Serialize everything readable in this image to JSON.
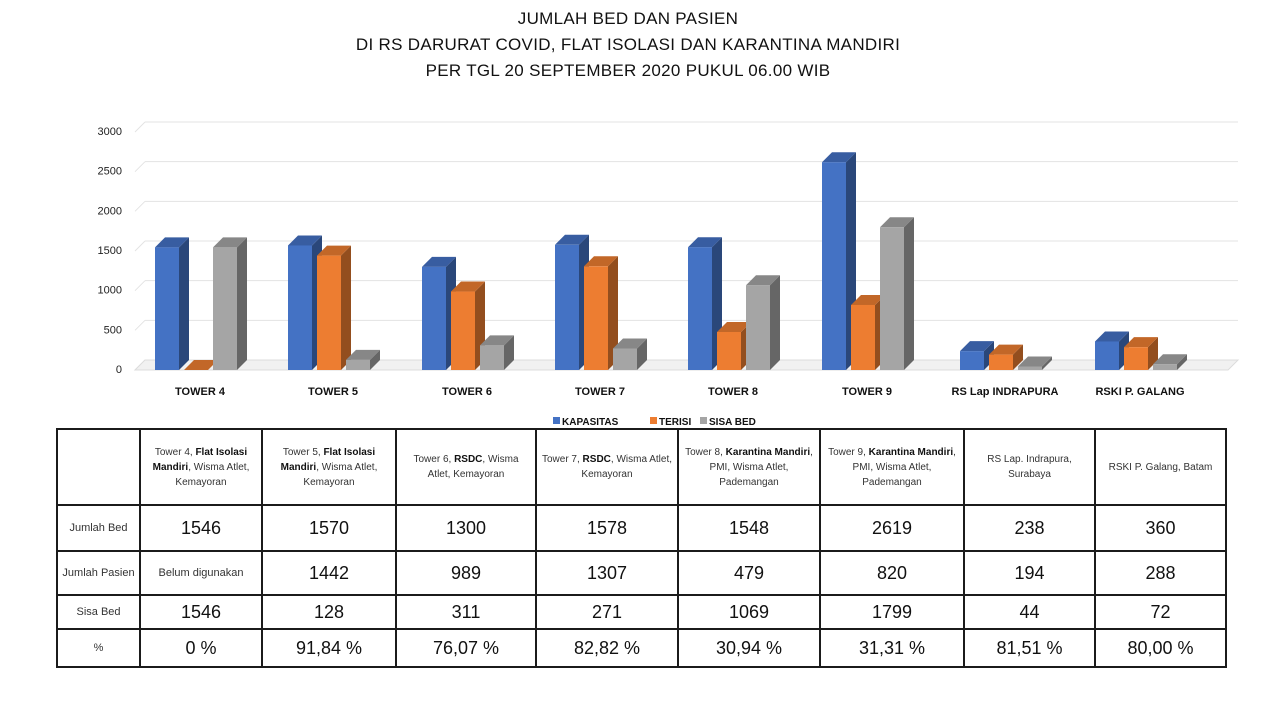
{
  "title": {
    "line1": "JUMLAH BED DAN PASIEN",
    "line2": "DI RS DARURAT COVID, FLAT ISOLASI  DAN KARANTINA MANDIRI",
    "line3": "PER TGL 20 SEPTEMBER 2020 PUKUL 06.00 WIB"
  },
  "chart_data": {
    "type": "bar",
    "title": "JUMLAH BED DAN PASIEN DI RS DARURAT COVID, FLAT ISOLASI  DAN KARANTINA MANDIRI PER TGL 20 SEPTEMBER 2020 PUKUL 06.00 WIB",
    "categories": [
      "TOWER 4",
      "TOWER 5",
      "TOWER 6",
      "TOWER 7",
      "TOWER 8",
      "TOWER 9",
      "RS Lap INDRAPURA",
      "RSKI P. GALANG"
    ],
    "series": [
      {
        "name": "KAPASITAS",
        "color": "#4472C4",
        "values": [
          1546,
          1570,
          1300,
          1578,
          1548,
          2619,
          238,
          360
        ]
      },
      {
        "name": "TERISI",
        "color": "#ED7D31",
        "values": [
          0,
          1442,
          989,
          1307,
          479,
          820,
          194,
          288
        ]
      },
      {
        "name": "SISA BED",
        "color": "#A5A5A5",
        "values": [
          1546,
          128,
          311,
          271,
          1069,
          1799,
          44,
          72
        ]
      }
    ],
    "yticks": [
      "0",
      "500",
      "1000",
      "1500",
      "2000",
      "2500",
      "3000"
    ],
    "ylim": [
      0,
      3000
    ],
    "grid": true,
    "legend_position": "bottom"
  },
  "table": {
    "headers": [
      {
        "pre": "Tower 4, ",
        "bold": "Flat Isolasi Mandiri",
        "post": ", Wisma Atlet, Kemayoran"
      },
      {
        "pre": "Tower 5, ",
        "bold": "Flat Isolasi Mandiri",
        "post": ", Wisma Atlet, Kemayoran"
      },
      {
        "pre": "Tower 6, ",
        "bold": "RSDC",
        "post": ", Wisma Atlet, Kemayoran"
      },
      {
        "pre": "Tower 7, ",
        "bold": "RSDC",
        "post": ", Wisma Atlet, Kemayoran"
      },
      {
        "pre": "Tower 8, ",
        "bold": "Karantina Mandiri",
        "post": ", PMI, Wisma Atlet, Pademangan"
      },
      {
        "pre": "Tower 9, ",
        "bold": "Karantina Mandiri",
        "post": ", PMI, Wisma Atlet, Pademangan"
      },
      {
        "pre": "RS Lap. Indrapura, Surabaya",
        "bold": "",
        "post": ""
      },
      {
        "pre": "RSKI P. Galang, Batam",
        "bold": "",
        "post": ""
      }
    ],
    "rows": [
      {
        "label": "Jumlah Bed",
        "values": [
          "1546",
          "1570",
          "1300",
          "1578",
          "1548",
          "2619",
          "238",
          "360"
        ]
      },
      {
        "label": "Jumlah Pasien",
        "values": [
          "Belum digunakan",
          "1442",
          "989",
          "1307",
          "479",
          "820",
          "194",
          "288"
        ]
      },
      {
        "label": "Sisa Bed",
        "values": [
          "1546",
          "128",
          "311",
          "271",
          "1069",
          "1799",
          "44",
          "72"
        ]
      },
      {
        "label": "%",
        "values": [
          "0 %",
          "91,84 %",
          "76,07 %",
          "82,82 %",
          "30,94 %",
          "31,31 %",
          "81,51 %",
          "80,00 %"
        ]
      }
    ]
  }
}
